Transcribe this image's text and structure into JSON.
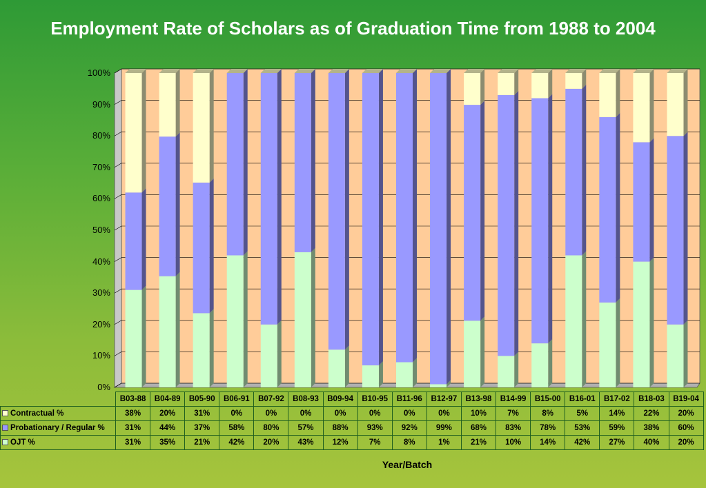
{
  "chart_data": {
    "type": "bar",
    "stacked": true,
    "title": "Employment Rate of Scholars as of Graduation Time from 1988 to 2004",
    "xlabel": "Year/Batch",
    "ylabel": "",
    "ylim": [
      0,
      100
    ],
    "yticks": [
      "0%",
      "10%",
      "20%",
      "30%",
      "40%",
      "50%",
      "60%",
      "70%",
      "80%",
      "90%",
      "100%"
    ],
    "categories": [
      "B03-88",
      "B04-89",
      "B05-90",
      "B06-91",
      "B07-92",
      "B08-93",
      "B09-94",
      "B10-95",
      "B11-96",
      "B12-97",
      "B13-98",
      "B14-99",
      "B15-00",
      "B16-01",
      "B17-02",
      "B18-03",
      "B19-04"
    ],
    "series": [
      {
        "name": "Contractual %",
        "color": "#ffffcc",
        "values": [
          38,
          20,
          31,
          0,
          0,
          0,
          0,
          0,
          0,
          0,
          10,
          7,
          8,
          5,
          14,
          22,
          20
        ],
        "labels": [
          "38%",
          "20%",
          "31%",
          "0%",
          "0%",
          "0%",
          "0%",
          "0%",
          "0%",
          "0%",
          "10%",
          "7%",
          "8%",
          "5%",
          "14%",
          "22%",
          "20%"
        ]
      },
      {
        "name": "Probationary / Regular %",
        "color": "#9999ff",
        "values": [
          31,
          44,
          37,
          58,
          80,
          57,
          88,
          93,
          92,
          99,
          68,
          83,
          78,
          53,
          59,
          38,
          60
        ],
        "labels": [
          "31%",
          "44%",
          "37%",
          "58%",
          "80%",
          "57%",
          "88%",
          "93%",
          "92%",
          "99%",
          "68%",
          "83%",
          "78%",
          "53%",
          "59%",
          "38%",
          "60%"
        ]
      },
      {
        "name": "OJT %",
        "color": "#ccffcc",
        "values": [
          31,
          35,
          21,
          42,
          20,
          43,
          12,
          7,
          8,
          1,
          21,
          10,
          14,
          42,
          27,
          40,
          20
        ],
        "labels": [
          "31%",
          "35%",
          "21%",
          "42%",
          "20%",
          "43%",
          "12%",
          "7%",
          "8%",
          "1%",
          "21%",
          "10%",
          "14%",
          "42%",
          "27%",
          "40%",
          "20%"
        ]
      }
    ],
    "colors": {
      "plot_background": "#ffcc99",
      "grid": "#000000"
    },
    "legend": "data-table"
  }
}
